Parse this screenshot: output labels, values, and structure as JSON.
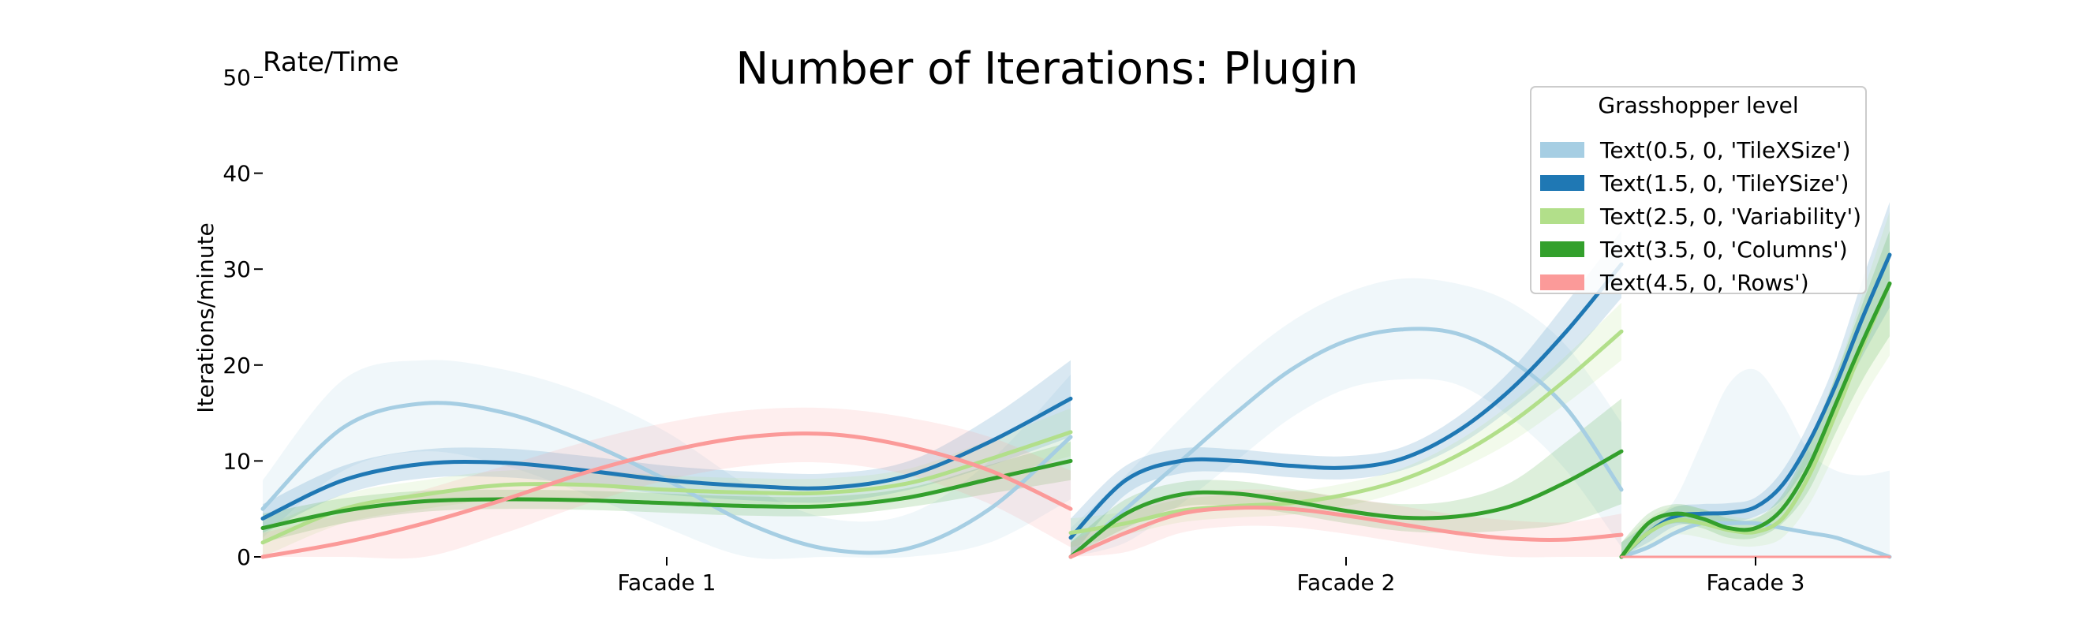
{
  "chart_data": {
    "type": "line",
    "title": "Number of Iterations: Plugin",
    "corner_label": "Rate/Time",
    "ylabel": "Iterations/minute",
    "xlabel": "",
    "ylim": [
      0,
      50
    ],
    "yticks": [
      0,
      10,
      20,
      30,
      40,
      50
    ],
    "grid": false,
    "legend": {
      "title": "Grasshopper level",
      "placement": "top-right",
      "entries": [
        {
          "label": "Text(0.5, 0, 'TileXSize')",
          "color": "#a6cee3"
        },
        {
          "label": "Text(1.5, 0, 'TileYSize')",
          "color": "#1f78b4"
        },
        {
          "label": "Text(2.5, 0, 'Variability')",
          "color": "#b2df8a"
        },
        {
          "label": "Text(3.5, 0, 'Columns')",
          "color": "#33a02c"
        },
        {
          "label": "Text(4.5, 0, 'Rows')",
          "color": "#fb9a99"
        }
      ]
    },
    "panels": [
      {
        "label": "Facade 1",
        "x": [
          0,
          0.1,
          0.2,
          0.3,
          0.4,
          0.5,
          0.6,
          0.7,
          0.8,
          0.9,
          1.0
        ],
        "series": [
          {
            "values": [
              5,
              13.5,
              16,
              15,
              12,
              8,
              3.5,
              0.8,
              0.9,
              5,
              12.5
            ],
            "lower": [
              2,
              9,
              11,
              9.5,
              6.5,
              3,
              0,
              0,
              0,
              1.5,
              6
            ],
            "upper": [
              8,
              18.5,
              20.5,
              19.5,
              17,
              13,
              7.5,
              4,
              4.5,
              10,
              19
            ],
            "color": "#a6cee3",
            "width": 5
          },
          {
            "values": [
              4,
              8,
              9.7,
              9.8,
              9,
              8,
              7.4,
              7.2,
              8.5,
              12,
              16.5
            ],
            "lower": [
              2.5,
              6.5,
              8.2,
              8.3,
              7.5,
              6.5,
              5.9,
              5.7,
              7,
              9.5,
              12.5
            ],
            "upper": [
              5.5,
              9.5,
              11.2,
              11.3,
              10.5,
              9.5,
              8.9,
              8.7,
              10,
              14.5,
              20.5
            ],
            "color": "#1f78b4",
            "width": 5
          },
          {
            "values": [
              1.5,
              5,
              6.5,
              7.5,
              7.5,
              7,
              6.7,
              6.7,
              7.7,
              10.2,
              13
            ],
            "lower": [
              0,
              3.5,
              5,
              6,
              6,
              5.5,
              5.2,
              5.2,
              6.2,
              8.2,
              10.5
            ],
            "upper": [
              3,
              6.5,
              8,
              9,
              9,
              8.5,
              8.2,
              8.2,
              9.2,
              12.2,
              15.5
            ],
            "color": "#b2df8a",
            "width": 5
          },
          {
            "values": [
              3,
              4.8,
              5.8,
              6,
              5.9,
              5.6,
              5.3,
              5.3,
              6.2,
              8.1,
              10
            ],
            "lower": [
              1.5,
              3.5,
              4.7,
              5,
              4.9,
              4.6,
              4.3,
              4.3,
              5.2,
              6.6,
              8
            ],
            "upper": [
              4.5,
              6.1,
              6.9,
              7,
              6.9,
              6.6,
              6.3,
              6.3,
              7.2,
              9.6,
              12
            ],
            "color": "#33a02c",
            "width": 5
          },
          {
            "values": [
              0,
              1.5,
              3.5,
              6,
              8.8,
              11,
              12.5,
              12.8,
              11.5,
              9,
              5
            ],
            "lower": [
              0,
              0,
              0,
              2.5,
              5.5,
              8,
              9.5,
              9.8,
              8.5,
              5.5,
              1
            ],
            "upper": [
              2.5,
              4.5,
              7,
              9.5,
              12,
              14,
              15.3,
              15.5,
              14.5,
              12.5,
              9
            ],
            "color": "#fb9a99",
            "width": 5
          }
        ]
      },
      {
        "label": "Facade 2",
        "x": [
          0,
          0.1,
          0.2,
          0.3,
          0.4,
          0.5,
          0.6,
          0.7,
          0.8,
          0.9,
          1.0
        ],
        "series": [
          {
            "values": [
              0,
              5,
              10,
              15,
              19.5,
              22.5,
              23.7,
              23.3,
              20.5,
              15.5,
              7
            ],
            "lower": [
              0,
              1.5,
              5.5,
              10,
              14.5,
              17.5,
              18.5,
              18,
              14.5,
              9,
              1
            ],
            "upper": [
              3,
              8.5,
              14.5,
              20,
              24.5,
              27.5,
              29,
              28.5,
              26.5,
              22,
              14
            ],
            "color": "#a6cee3",
            "width": 5
          },
          {
            "values": [
              2,
              8,
              10,
              10,
              9.5,
              9.3,
              10.2,
              13,
              17.5,
              23.5,
              30.5
            ],
            "lower": [
              0,
              6.5,
              8.7,
              8.8,
              8.3,
              8.1,
              9,
              11.5,
              15.5,
              20.5,
              27
            ],
            "upper": [
              4,
              9.5,
              11.3,
              11.2,
              10.7,
              10.5,
              11.4,
              14.5,
              19.5,
              26.5,
              34
            ],
            "color": "#1f78b4",
            "width": 5
          },
          {
            "values": [
              2.5,
              3.5,
              4.8,
              5.3,
              5.6,
              6.5,
              8,
              10.5,
              14,
              18.5,
              23.5
            ],
            "lower": [
              1,
              2.3,
              3.6,
              4.1,
              4.4,
              5.3,
              6.8,
              9,
              12,
              16,
              20.5
            ],
            "upper": [
              4,
              4.7,
              6,
              6.5,
              6.8,
              7.7,
              9.2,
              12,
              16,
              21,
              26.5
            ],
            "color": "#b2df8a",
            "width": 5
          },
          {
            "values": [
              0,
              4.5,
              6.5,
              6.6,
              5.8,
              4.8,
              4.1,
              4.2,
              5.3,
              7.8,
              11
            ],
            "lower": [
              0,
              3,
              5.2,
              5.3,
              4.5,
              3.5,
              2.7,
              2.5,
              2.8,
              3.5,
              5.5
            ],
            "upper": [
              1.5,
              6,
              7.8,
              7.9,
              7.1,
              6.1,
              5.5,
              5.9,
              7.8,
              12,
              16.5
            ],
            "color": "#33a02c",
            "width": 5
          },
          {
            "values": [
              0,
              2.5,
              4.5,
              5.1,
              5,
              4.3,
              3.4,
              2.5,
              1.9,
              1.8,
              2.3
            ],
            "lower": [
              0,
              0.5,
              2.5,
              3.2,
              3.1,
              2.4,
              1.5,
              0.6,
              0,
              0,
              0
            ],
            "upper": [
              1.5,
              4.5,
              6.5,
              7,
              6.9,
              6.2,
              5.3,
              4.4,
              3.8,
              3.6,
              4.5
            ],
            "color": "#fb9a99",
            "width": 5
          }
        ]
      },
      {
        "label": "Facade 3",
        "x": [
          0,
          0.1,
          0.2,
          0.3,
          0.4,
          0.5,
          0.6,
          0.7,
          0.8,
          0.9,
          1.0
        ],
        "series": [
          {
            "values": [
              0,
              1,
              2.5,
              3.5,
              3.5,
              3.5,
              3,
              2.5,
              2,
              1,
              0
            ],
            "lower": [
              0,
              0,
              0,
              0,
              0,
              0,
              0,
              0,
              0,
              0,
              0
            ],
            "upper": [
              0.5,
              3,
              6,
              12,
              18,
              19.5,
              16,
              11,
              9,
              8.5,
              9
            ],
            "color": "#a6cee3",
            "width": 5
          },
          {
            "values": [
              0,
              2.5,
              4.2,
              4.5,
              4.6,
              5.2,
              7.5,
              12,
              18,
              25,
              31.5
            ],
            "lower": [
              0,
              1.5,
              3.2,
              3.5,
              3.6,
              4.2,
              6,
              10,
              15.5,
              21,
              26
            ],
            "upper": [
              1.5,
              3.5,
              5.2,
              5.5,
              5.6,
              6.2,
              9,
              14,
              20.5,
              29,
              37
            ],
            "color": "#1f78b4",
            "width": 5
          },
          {
            "values": [
              0,
              2.5,
              3.8,
              3.5,
              2.8,
              2.6,
              4,
              8.5,
              15,
              22,
              28.5
            ],
            "lower": [
              0,
              1,
              2.3,
              2,
              1.3,
              1.1,
              2,
              5.5,
              11,
              16.5,
              21
            ],
            "upper": [
              1.5,
              4,
              5.3,
              5,
              4.3,
              4.1,
              6,
              11.5,
              19,
              27.5,
              36
            ],
            "color": "#b2df8a",
            "width": 5
          },
          {
            "values": [
              0,
              3.5,
              4.5,
              4,
              3,
              3,
              5,
              9.5,
              16,
              22.5,
              28.5
            ],
            "lower": [
              0,
              2.5,
              3.5,
              3,
              2,
              2,
              3.5,
              7,
              13,
              18.5,
              23
            ],
            "upper": [
              1.5,
              4.5,
              5.5,
              5,
              4,
              4,
              6.5,
              12,
              19,
              26.5,
              34
            ],
            "color": "#33a02c",
            "width": 5
          },
          {
            "values": [
              0,
              0,
              0,
              0,
              0,
              0,
              0,
              0,
              0,
              0,
              0
            ],
            "lower": [
              0,
              0,
              0,
              0,
              0,
              0,
              0,
              0,
              0,
              0,
              0
            ],
            "upper": [
              0,
              0,
              0,
              0,
              0,
              0,
              0,
              0,
              0,
              0,
              0
            ],
            "color": "#fb9a99",
            "width": 3
          }
        ]
      }
    ]
  }
}
